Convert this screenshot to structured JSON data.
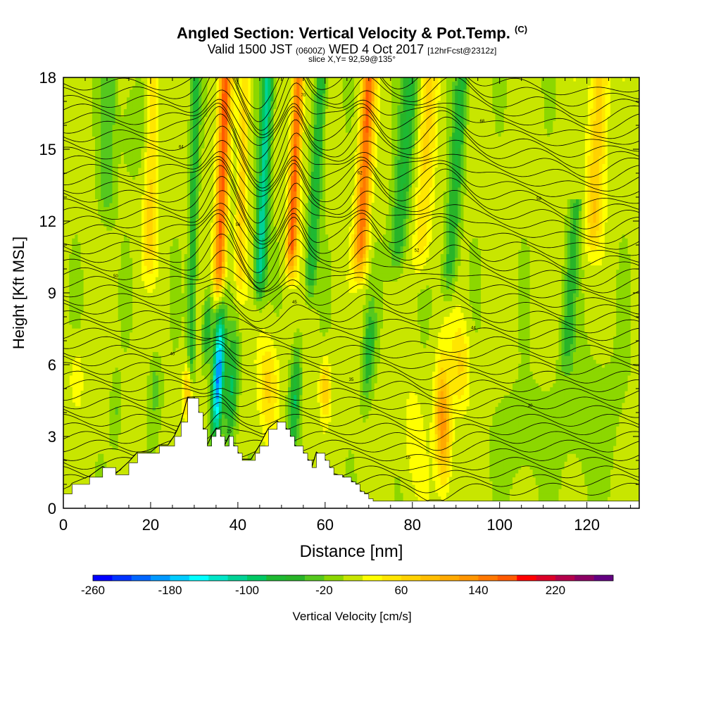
{
  "title": {
    "main": "Angled Section: Vertical Velocity & Pot.Temp.",
    "main_unit": "(C)",
    "valid_prefix": "Valid 1500 JST",
    "valid_utc": "(0600Z)",
    "valid_date": "WED 4 Oct 2017",
    "forecast": "[12hrFcst@2312z]",
    "slice": "slice X,Y= 92,59@135°"
  },
  "chart_data": {
    "type": "heatmap",
    "title": "Angled Section: Vertical Velocity & Pot.Temp.",
    "xlabel": "Distance [nm]",
    "ylabel": "Height [Kft MSL]",
    "xlim": [
      0,
      132
    ],
    "ylim": [
      0,
      18
    ],
    "x_ticks": [
      0,
      20,
      40,
      60,
      80,
      100,
      120
    ],
    "y_ticks": [
      0,
      3,
      6,
      9,
      12,
      15,
      18
    ],
    "colorbar": {
      "label": "Vertical Velocity [cm/s]",
      "min": -260,
      "max": 260,
      "step": 20,
      "tick_values": [
        -260,
        -180,
        -100,
        -20,
        60,
        140,
        220
      ],
      "tick_labels": [
        "-260",
        "-180",
        "-100",
        "-20",
        "60",
        "140",
        "220"
      ],
      "colors": [
        "#0000ff",
        "#0033ff",
        "#0066ff",
        "#0099ff",
        "#00ccff",
        "#00ffff",
        "#00e6c8",
        "#00d296",
        "#00c864",
        "#1eb932",
        "#28b428",
        "#55c81e",
        "#8cd700",
        "#c8e600",
        "#ffff00",
        "#ffe600",
        "#ffd200",
        "#ffbe00",
        "#ffaa00",
        "#ff9600",
        "#ff7800",
        "#ff5a00",
        "#ff0000",
        "#dc0028",
        "#b4004b",
        "#8c0064",
        "#640082"
      ]
    },
    "terrain_kft": [
      [
        0,
        0.6
      ],
      [
        2,
        1.0
      ],
      [
        6,
        1.3
      ],
      [
        9,
        1.7
      ],
      [
        12,
        1.4
      ],
      [
        15,
        1.9
      ],
      [
        17,
        2.3
      ],
      [
        20,
        2.3
      ],
      [
        22,
        2.6
      ],
      [
        24,
        2.6
      ],
      [
        25.5,
        3.0
      ],
      [
        27,
        3.6
      ],
      [
        28.5,
        4.6
      ],
      [
        30,
        4.6
      ],
      [
        31,
        4.0
      ],
      [
        32,
        3.3
      ],
      [
        33,
        2.6
      ],
      [
        34,
        3.0
      ],
      [
        35,
        3.3
      ],
      [
        36,
        3.0
      ],
      [
        37,
        2.6
      ],
      [
        38,
        3.0
      ],
      [
        39,
        2.6
      ],
      [
        40,
        2.3
      ],
      [
        41,
        2.0
      ],
      [
        43,
        2.0
      ],
      [
        44,
        2.3
      ],
      [
        45,
        2.6
      ],
      [
        47,
        3.3
      ],
      [
        49,
        3.6
      ],
      [
        51,
        3.3
      ],
      [
        52,
        3.0
      ],
      [
        53,
        2.6
      ],
      [
        55,
        2.3
      ],
      [
        56,
        2.0
      ],
      [
        57,
        1.7
      ],
      [
        58,
        2.3
      ],
      [
        60,
        2.0
      ],
      [
        61,
        1.7
      ],
      [
        62,
        1.4
      ],
      [
        64,
        1.3
      ],
      [
        66,
        1.1
      ],
      [
        67,
        1.0
      ],
      [
        68,
        0.7
      ],
      [
        69,
        0.6
      ],
      [
        70,
        0.4
      ],
      [
        71,
        0.3
      ],
      [
        132,
        0.3
      ]
    ],
    "vertical_velocity_features_cm_s": [
      {
        "x": 36.5,
        "z_range": [
          10,
          18
        ],
        "peak": 160
      },
      {
        "x": 53,
        "z_range": [
          11,
          18
        ],
        "peak": 160
      },
      {
        "x": 69,
        "z_range": [
          11,
          18
        ],
        "peak": 150
      },
      {
        "x": 87,
        "z_range": [
          1,
          5
        ],
        "peak": 120
      },
      {
        "x": 36,
        "z_range": [
          3,
          8
        ],
        "peak": -200
      },
      {
        "x": 47,
        "z_range": [
          3,
          8
        ],
        "peak": 60
      },
      {
        "x": 60,
        "z_range": [
          4,
          6
        ],
        "peak": 70
      },
      {
        "x": 46,
        "z_range": [
          10,
          18
        ],
        "peak": -120
      }
    ],
    "contour_labels": [
      "10",
      "16",
      "20",
      "25",
      "30",
      "32",
      "35",
      "40",
      "41",
      "44",
      "45",
      "48",
      "50",
      "52",
      "54",
      "56",
      "58",
      "60",
      "62",
      "64",
      "66",
      "68",
      "70",
      "72"
    ]
  }
}
